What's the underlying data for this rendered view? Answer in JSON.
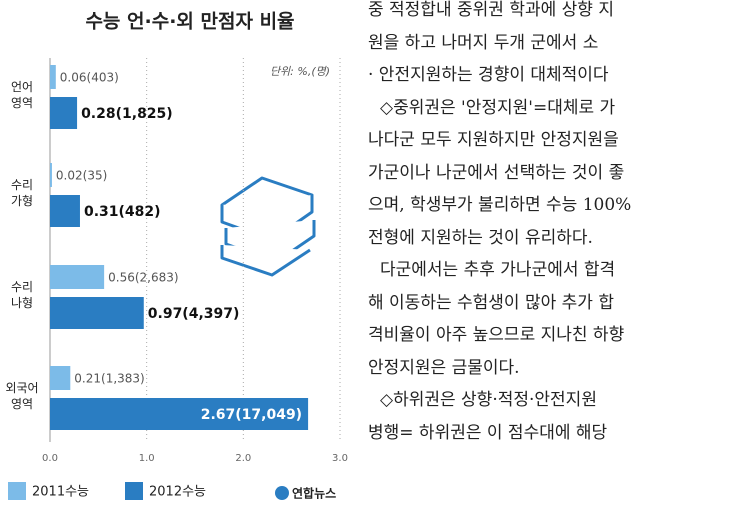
{
  "chart_data": {
    "type": "hbar",
    "title": "수능 언·수·외 만점자 비율",
    "unit_note": "단위: %,(명)",
    "source": "연합뉴스",
    "categories": [
      "언어\n영역",
      "수리\n가형",
      "수리\n나형",
      "외국어\n영역"
    ],
    "series": [
      {
        "name": "2011수능",
        "color": "#7cbbe8",
        "values": [
          0.06,
          0.02,
          0.56,
          0.21
        ],
        "value_labels": [
          "0.06(403)",
          "0.02(35)",
          "0.56(2,683)",
          "0.21(1,383)"
        ]
      },
      {
        "name": "2012수능",
        "color": "#2a7dc2",
        "values": [
          0.28,
          0.31,
          0.97,
          2.67
        ],
        "value_labels": [
          "0.28(1,825)",
          "0.31(482)",
          "0.97(4,397)",
          "2.67(17,049)"
        ]
      }
    ],
    "xlim": [
      0,
      3
    ],
    "xticks": [
      {
        "value": 0,
        "label": "0.0"
      },
      {
        "value": 1,
        "label": "1.0"
      },
      {
        "value": 2,
        "label": "2.0"
      },
      {
        "value": 3,
        "label": "3.0"
      }
    ],
    "grid": true
  },
  "article": {
    "lines": [
      "중 적정합내 중위권 학과에 상향 지",
      "원을 하고 나머지 두개 군에서 소",
      "· 안전지원하는 경향이 대체적이다",
      "◇중위권은 '안정지원'=대체로 가",
      "나다군 모두 지원하지만 안정지원을",
      "가군이나 나군에서 선택하는 것이 좋",
      "으며, 학생부가 불리하면 수능 100%",
      "전형에 지원하는 것이 유리하다.",
      "다군에서는 추후 가나군에서 합격",
      "해 이동하는 수험생이 많아 추가 합",
      "격비율이 아주 높으므로 지나친 하향",
      "안정지원은 금물이다.",
      "◇하위권은 상향·적정·안전지원",
      "병행= 하위권은 이 점수대에 해당"
    ]
  }
}
